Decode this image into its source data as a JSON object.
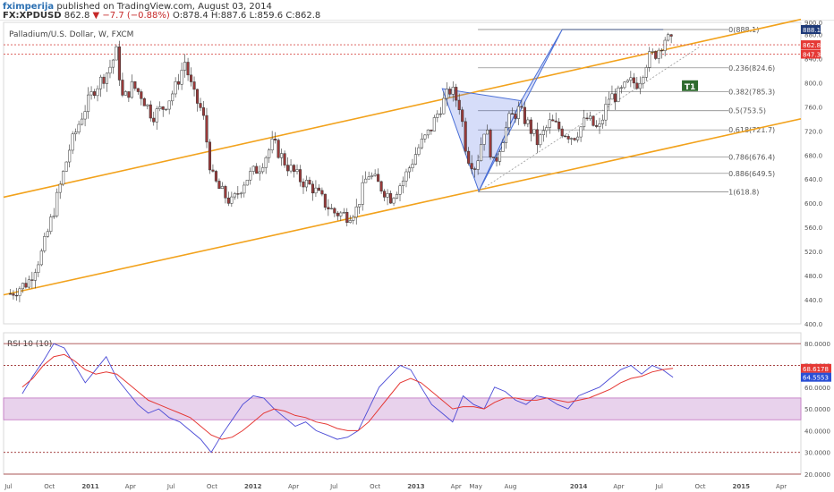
{
  "header": {
    "author": "fximperija",
    "published": "published on TradingView.com, August 03, 2014",
    "symbol": "FX:XPDUSD",
    "last": "862.8",
    "change": "▼ −7.7 (−0.88%)",
    "ohlc": "O:878.4 H:887.6 L:859.6 C:862.8"
  },
  "chart_data": [
    {
      "type": "candlestick",
      "title": "Palladium/U.S. Dollar, W, FXCM",
      "ylim": [
        400,
        900
      ],
      "y_ticks": [
        "900.0",
        "880.0",
        "840.0",
        "800.0",
        "760.0",
        "720.0",
        "680.0",
        "640.0",
        "600.0",
        "560.0",
        "520.0",
        "480.0",
        "440.0",
        "400.0"
      ],
      "x_ticks": [
        "Jul",
        "Oct",
        "2011",
        "Apr",
        "Jul",
        "Oct",
        "2012",
        "Apr",
        "Jul",
        "Oct",
        "2013",
        "Apr",
        "May",
        "Aug",
        "2014",
        "Apr",
        "Jul",
        "Oct",
        "2015",
        "Apr"
      ],
      "close_path": [
        [
          "2010-07-05",
          450
        ],
        [
          "2010-08-15",
          470
        ],
        [
          "2010-09-15",
          520
        ],
        [
          "2010-10-15",
          600
        ],
        [
          "2010-11-15",
          690
        ],
        [
          "2010-12-15",
          750
        ],
        [
          "2011-01-10",
          790
        ],
        [
          "2011-02-10",
          820
        ],
        [
          "2011-02-28",
          850
        ],
        [
          "2011-03-15",
          770
        ],
        [
          "2011-04-05",
          795
        ],
        [
          "2011-04-25",
          780
        ],
        [
          "2011-05-20",
          745
        ],
        [
          "2011-06-15",
          760
        ],
        [
          "2011-07-10",
          790
        ],
        [
          "2011-08-01",
          835
        ],
        [
          "2011-08-20",
          780
        ],
        [
          "2011-09-10",
          750
        ],
        [
          "2011-09-30",
          645
        ],
        [
          "2011-10-20",
          620
        ],
        [
          "2011-11-15",
          600
        ],
        [
          "2011-12-15",
          640
        ],
        [
          "2012-01-15",
          660
        ],
        [
          "2012-02-15",
          700
        ],
        [
          "2012-03-15",
          665
        ],
        [
          "2012-04-15",
          640
        ],
        [
          "2012-05-15",
          625
        ],
        [
          "2012-06-10",
          600
        ],
        [
          "2012-06-30",
          585
        ],
        [
          "2012-07-30",
          580
        ],
        [
          "2012-08-20",
          590
        ],
        [
          "2012-09-15",
          650
        ],
        [
          "2012-10-10",
          630
        ],
        [
          "2012-11-05",
          610
        ],
        [
          "2012-12-05",
          640
        ],
        [
          "2013-01-05",
          690
        ],
        [
          "2013-02-01",
          720
        ],
        [
          "2013-02-25",
          760
        ],
        [
          "2013-03-20",
          790
        ],
        [
          "2013-04-10",
          760
        ],
        [
          "2013-04-25",
          680
        ],
        [
          "2013-05-15",
          660
        ],
        [
          "2013-06-05",
          730
        ],
        [
          "2013-06-25",
          660
        ],
        [
          "2013-07-10",
          700
        ],
        [
          "2013-07-30",
          740
        ],
        [
          "2013-08-20",
          755
        ],
        [
          "2013-09-10",
          730
        ],
        [
          "2013-10-01",
          700
        ],
        [
          "2013-10-30",
          735
        ],
        [
          "2013-11-25",
          720
        ],
        [
          "2013-12-20",
          710
        ],
        [
          "2014-01-20",
          740
        ],
        [
          "2014-02-15",
          720
        ],
        [
          "2014-03-10",
          775
        ],
        [
          "2014-04-01",
          780
        ],
        [
          "2014-04-25",
          800
        ],
        [
          "2014-05-15",
          800
        ],
        [
          "2014-06-05",
          840
        ],
        [
          "2014-06-25",
          850
        ],
        [
          "2014-07-15",
          875
        ],
        [
          "2014-08-01",
          862.8
        ]
      ],
      "fib_levels": [
        {
          "label": "0(888.1)",
          "price": 888.1
        },
        {
          "label": "0.236(824.6)",
          "price": 824.6
        },
        {
          "label": "0.382(785.3)",
          "price": 785.3
        },
        {
          "label": "0.5(753.5)",
          "price": 753.5
        },
        {
          "label": "0.618(721.7)",
          "price": 721.7
        },
        {
          "label": "0.786(676.4)",
          "price": 676.4
        },
        {
          "label": "0.886(649.5)",
          "price": 649.5
        },
        {
          "label": "1(618.8)",
          "price": 618.8
        }
      ],
      "price_badges": [
        {
          "label": "888.1",
          "price": 888.1,
          "color": "#1e3a78"
        },
        {
          "label": "862.8",
          "price": 862.8,
          "color": "#e53935"
        },
        {
          "label": "847.3",
          "price": 847.3,
          "color": "#e53935"
        }
      ],
      "annotation": "T1",
      "colors": {
        "up": "#ffffff",
        "down": "#9a3a3a",
        "channel": "#f2a21c",
        "pattern": "#4a6fd6",
        "hline": "#d9534f"
      }
    },
    {
      "type": "line",
      "title": "RSI 10 (10)",
      "ylim": [
        20,
        85
      ],
      "y_ticks": [
        "80.0000",
        "70.0000",
        "60.0000",
        "50.0000",
        "40.0000",
        "30.0000",
        "20.0000"
      ],
      "band": [
        45,
        55
      ],
      "series": [
        {
          "values": [
            57,
            65,
            72,
            80,
            78,
            70,
            62,
            68,
            74,
            64,
            58,
            52,
            48,
            50,
            46,
            44,
            40,
            36,
            30,
            38,
            45,
            52,
            56,
            55,
            50,
            46,
            42,
            44,
            40,
            38,
            36,
            37,
            40,
            50,
            60,
            65,
            70,
            68,
            60,
            52,
            48,
            44,
            56,
            52,
            50,
            60,
            58,
            54,
            52,
            56,
            55,
            52,
            50,
            56,
            58,
            60,
            64,
            68,
            70,
            66,
            70,
            68,
            64.56
          ],
          "color": "#4a4ad6"
        },
        {
          "values": [
            60,
            64,
            70,
            74,
            75,
            72,
            68,
            66,
            67,
            66,
            62,
            58,
            54,
            52,
            50,
            48,
            46,
            42,
            38,
            36,
            37,
            40,
            44,
            48,
            50,
            49,
            47,
            46,
            44,
            43,
            41,
            40,
            40,
            44,
            50,
            56,
            62,
            64,
            62,
            58,
            54,
            50,
            51,
            51,
            50,
            53,
            55,
            55,
            54,
            54,
            55,
            54,
            53,
            54,
            55,
            57,
            59,
            62,
            64,
            65,
            67,
            68,
            68.62
          ],
          "color": "#e53935"
        }
      ],
      "value_badges": [
        {
          "label": "68.6178",
          "value": 68.6178,
          "color": "#e53935"
        },
        {
          "label": "64.5553",
          "value": 64.5553,
          "color": "#2a4fd6"
        }
      ]
    }
  ]
}
